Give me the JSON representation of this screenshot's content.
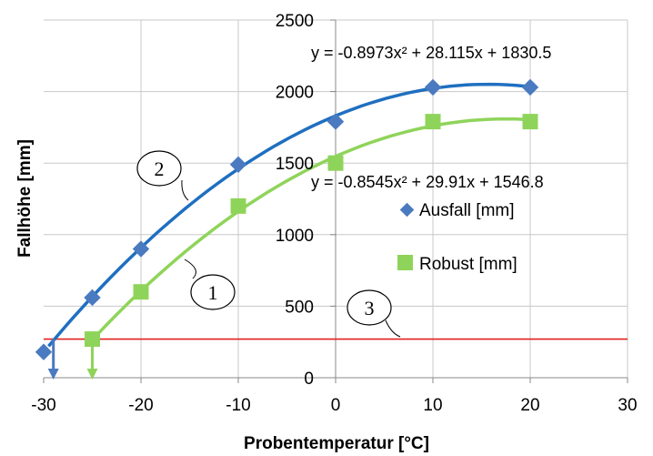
{
  "chart_data": {
    "type": "scatter",
    "xlabel": "Probentemperatur [°C]",
    "ylabel": "Fallhöhe [mm]",
    "xlim": [
      -30,
      30
    ],
    "ylim": [
      0,
      2500
    ],
    "x_ticks": [
      "-30",
      "-20",
      "-10",
      "0",
      "10",
      "20",
      "30"
    ],
    "y_ticks": [
      "0",
      "500",
      "1000",
      "1500",
      "2000",
      "2500"
    ],
    "grid": "on",
    "legend": "right",
    "series": [
      {
        "name": "Ausfall [mm]",
        "marker": "diamond",
        "color": "#4a7ac0",
        "trendline_color": "#1f6fc0",
        "x": [
          -30,
          -25,
          -20,
          -10,
          0,
          10,
          20
        ],
        "y": [
          180,
          560,
          900,
          1490,
          1790,
          2030,
          2030
        ],
        "trendline_equation": "y = -0.8973x² + 28.115x + 1830.5",
        "trendline": {
          "a": -0.8973,
          "b": 28.115,
          "c": 1830.5,
          "x_range": [
            -29.5,
            20
          ]
        },
        "arrow_x": -29
      },
      {
        "name": "Robust [mm]",
        "marker": "square",
        "color": "#8fd45a",
        "trendline_color": "#8fd45a",
        "x": [
          -25,
          -20,
          -10,
          0,
          10,
          20
        ],
        "y": [
          270,
          600,
          1200,
          1500,
          1790,
          1790
        ],
        "trendline_equation": "y = -0.8545x² + 29.91x + 1546.8",
        "trendline": {
          "a": -0.8545,
          "b": 29.91,
          "c": 1546.8,
          "x_range": [
            -25,
            20
          ]
        },
        "arrow_x": -25
      }
    ],
    "reference_line": {
      "y": 270,
      "color": "#e02020"
    },
    "annotations": [
      "1",
      "2",
      "3"
    ]
  }
}
